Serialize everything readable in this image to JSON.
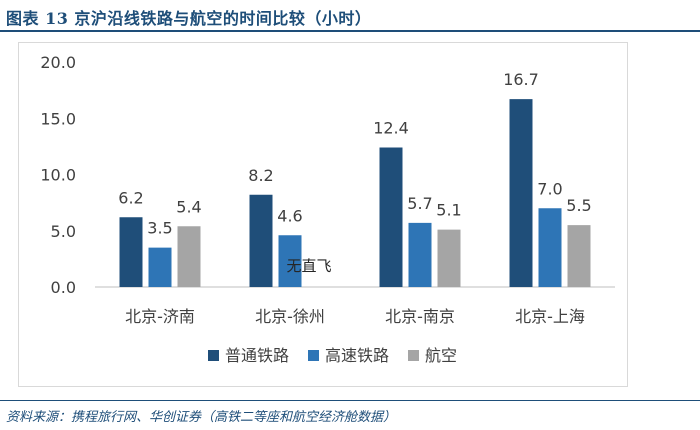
{
  "figure_title": "图表 13 京沪沿线铁路与航空的时间比较（小时）",
  "source": "资料来源：携程旅行网、华创证券（高铁二等座和航空经济舱数据）",
  "chart_data": {
    "type": "bar",
    "title": "",
    "xlabel": "",
    "ylabel": "",
    "categories": [
      "北京-济南",
      "北京-徐州",
      "北京-南京",
      "北京-上海"
    ],
    "series": [
      {
        "name": "普通铁路",
        "color": "#1f4e79",
        "values": [
          6.2,
          8.2,
          12.4,
          16.7
        ],
        "labels": [
          "6.2",
          "8.2",
          "12.4",
          "16.7"
        ]
      },
      {
        "name": "高速铁路",
        "color": "#2e75b6",
        "values": [
          3.5,
          4.6,
          5.7,
          7.0
        ],
        "labels": [
          "3.5",
          "4.6",
          "5.7",
          "7.0"
        ]
      },
      {
        "name": "航空",
        "color": "#a5a5a5",
        "values": [
          5.4,
          null,
          5.1,
          5.5
        ],
        "labels": [
          "5.4",
          null,
          "5.1",
          "5.5"
        ]
      }
    ],
    "ylim": [
      0,
      20
    ],
    "yticks": [
      0,
      5,
      10,
      15,
      20
    ],
    "ytick_labels": [
      "0.0",
      "5.0",
      "10.0",
      "15.0",
      "20.0"
    ],
    "annotations": [
      {
        "category": "北京-徐州",
        "series": "航空",
        "text": "无直飞"
      }
    ],
    "legend_position": "bottom",
    "grid": false
  }
}
